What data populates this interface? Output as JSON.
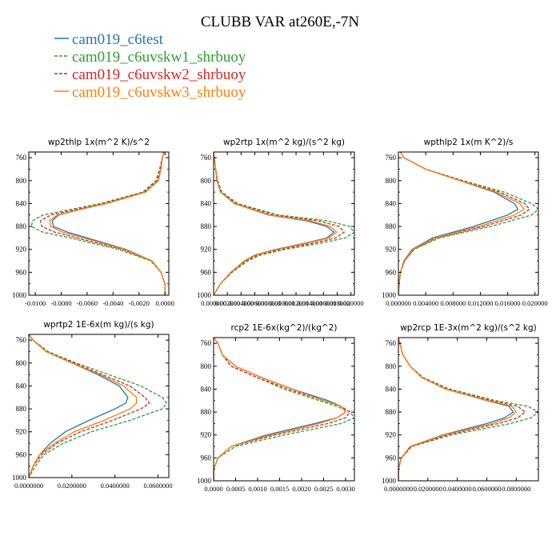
{
  "figure": {
    "title": "CLUBB VAR at260E,-7N"
  },
  "legend": [
    {
      "name": "cam019_c6test",
      "color": "#1f77b4",
      "dash": "solid"
    },
    {
      "name": "cam019_c6uvskw1_shrbuoy",
      "color": "#2ca02c",
      "dash": "dashed"
    },
    {
      "name": "cam019_c6uvskw2_shrbuoy",
      "color": "#d62728",
      "dash": "dashed"
    },
    {
      "name": "cam019_c6uvskw3_shrbuoy",
      "color": "#ff7f0e",
      "dash": "solid"
    }
  ],
  "chart_data": [
    {
      "type": "line",
      "title": "wp2thlp  1x(m^2 K)/s^2",
      "ylabel": "",
      "xlabel": "",
      "ylim": [
        1000,
        750
      ],
      "y_inverted": true,
      "xlim": [
        -0.0105,
        0.0003
      ],
      "yticks": [
        760,
        800,
        840,
        880,
        920,
        960,
        1000
      ],
      "xticks": [
        -0.01,
        -0.008,
        -0.006,
        -0.004,
        -0.002,
        0.0
      ],
      "xtick_labels": [
        "-0.0100",
        "-0.0080",
        "-0.0060",
        "-0.0040",
        "-0.0020",
        "0.0000"
      ],
      "levels": [
        750,
        760,
        780,
        800,
        820,
        840,
        850,
        860,
        870,
        880,
        890,
        900,
        920,
        940,
        960,
        980,
        1000
      ],
      "series": [
        {
          "name": "cam019_c6test",
          "values": [
            -0.0001,
            -0.0002,
            -0.0003,
            -0.0005,
            -0.0015,
            -0.0045,
            -0.0065,
            -0.0082,
            -0.0087,
            -0.0086,
            -0.0075,
            -0.006,
            -0.003,
            -0.001,
            -0.0003,
            0.0,
            0.0
          ]
        },
        {
          "name": "cam019_c6uvskw1_shrbuoy",
          "values": [
            -0.0001,
            -0.0002,
            -0.0004,
            -0.0007,
            -0.0017,
            -0.005,
            -0.0072,
            -0.0094,
            -0.0102,
            -0.0103,
            -0.0094,
            -0.0073,
            -0.0036,
            -0.0011,
            -0.0003,
            0.0,
            0.0
          ]
        },
        {
          "name": "cam019_c6uvskw2_shrbuoy",
          "values": [
            -0.0001,
            -0.0002,
            -0.0004,
            -0.0006,
            -0.0016,
            -0.0047,
            -0.0068,
            -0.0088,
            -0.0096,
            -0.0095,
            -0.0085,
            -0.0068,
            -0.0033,
            -0.001,
            -0.0003,
            0.0,
            0.0
          ]
        },
        {
          "name": "cam019_c6uvskw3_shrbuoy",
          "values": [
            -0.0001,
            -0.0002,
            -0.0003,
            -0.0005,
            -0.0015,
            -0.0045,
            -0.0065,
            -0.0083,
            -0.0089,
            -0.0088,
            -0.0079,
            -0.0063,
            -0.0031,
            -0.001,
            -0.0003,
            0.0,
            0.0
          ]
        }
      ]
    },
    {
      "type": "line",
      "title": "wp2rtp  1x(m^2 kg)/(s^2 kg)",
      "ylabel": "",
      "xlabel": "",
      "ylim": [
        1000,
        750
      ],
      "y_inverted": true,
      "xlim": [
        0,
        0.0205
      ],
      "yticks": [
        760,
        800,
        840,
        880,
        920,
        960,
        1000
      ],
      "xticks": [
        0,
        0.002,
        0.004,
        0.006,
        0.008,
        0.01,
        0.012,
        0.014,
        0.016,
        0.018,
        0.02
      ],
      "xtick_labels": [
        "0.000000",
        "0.002000",
        "0.004000",
        "0.006000",
        "0.008000",
        "0.010000",
        "0.012000",
        "0.014000",
        "0.016000",
        "0.018000",
        "0.020000"
      ],
      "levels": [
        750,
        760,
        780,
        800,
        820,
        840,
        860,
        870,
        880,
        890,
        900,
        910,
        920,
        930,
        940,
        960,
        980,
        1000
      ],
      "series": [
        {
          "name": "cam019_c6test",
          "values": [
            0.0,
            0.0001,
            0.0003,
            0.0005,
            0.001,
            0.003,
            0.008,
            0.0135,
            0.0165,
            0.0175,
            0.0165,
            0.013,
            0.009,
            0.006,
            0.0045,
            0.0025,
            0.001,
            0.0
          ]
        },
        {
          "name": "cam019_c6uvskw1_shrbuoy",
          "values": [
            0.0,
            0.0001,
            0.0003,
            0.0006,
            0.0012,
            0.0035,
            0.0095,
            0.0165,
            0.0198,
            0.0205,
            0.0192,
            0.0152,
            0.0104,
            0.0068,
            0.005,
            0.0027,
            0.001,
            0.0
          ]
        },
        {
          "name": "cam019_c6uvskw2_shrbuoy",
          "values": [
            0.0,
            0.0001,
            0.0003,
            0.0005,
            0.0011,
            0.0032,
            0.0088,
            0.0152,
            0.0183,
            0.019,
            0.0178,
            0.0142,
            0.0097,
            0.0064,
            0.0047,
            0.0026,
            0.001,
            0.0
          ]
        },
        {
          "name": "cam019_c6uvskw3_shrbuoy",
          "values": [
            0.0,
            0.0001,
            0.0003,
            0.0005,
            0.001,
            0.003,
            0.0082,
            0.014,
            0.017,
            0.0179,
            0.0168,
            0.0133,
            0.0092,
            0.0061,
            0.0046,
            0.0025,
            0.001,
            0.0
          ]
        }
      ]
    },
    {
      "type": "line",
      "title": "wpthlp2  1x(m K^2)/s",
      "ylabel": "",
      "xlabel": "",
      "ylim": [
        1000,
        750
      ],
      "y_inverted": true,
      "xlim": [
        0,
        0.0205
      ],
      "yticks": [
        760,
        800,
        840,
        880,
        920,
        960,
        1000
      ],
      "xticks": [
        0,
        0.004,
        0.008,
        0.012,
        0.016,
        0.02
      ],
      "xtick_labels": [
        "0.000000",
        "0.004000",
        "0.008000",
        "0.012000",
        "0.016000",
        "0.020000"
      ],
      "levels": [
        750,
        760,
        780,
        800,
        820,
        840,
        850,
        860,
        880,
        900,
        920,
        940,
        960,
        980,
        1000
      ],
      "series": [
        {
          "name": "cam019_c6test",
          "values": [
            0.0003,
            0.0008,
            0.004,
            0.009,
            0.014,
            0.017,
            0.0175,
            0.016,
            0.011,
            0.005,
            0.002,
            0.0008,
            0.0003,
            0.0001,
            0.0
          ]
        },
        {
          "name": "cam019_c6uvskw1_shrbuoy",
          "values": [
            0.0003,
            0.0008,
            0.004,
            0.0095,
            0.0155,
            0.0195,
            0.0205,
            0.0195,
            0.0135,
            0.006,
            0.0023,
            0.0009,
            0.0003,
            0.0001,
            0.0
          ]
        },
        {
          "name": "cam019_c6uvskw2_shrbuoy",
          "values": [
            0.0003,
            0.0008,
            0.004,
            0.0092,
            0.0148,
            0.0185,
            0.0192,
            0.018,
            0.0125,
            0.0056,
            0.0022,
            0.0009,
            0.0003,
            0.0001,
            0.0
          ]
        },
        {
          "name": "cam019_c6uvskw3_shrbuoy",
          "values": [
            0.0003,
            0.0008,
            0.004,
            0.009,
            0.0143,
            0.0178,
            0.0184,
            0.017,
            0.0118,
            0.0053,
            0.0021,
            0.0008,
            0.0003,
            0.0001,
            0.0
          ]
        }
      ]
    },
    {
      "type": "line",
      "title": "wprtp2  1E-6x(m kg)/(s kg)",
      "ylabel": "",
      "xlabel": "",
      "ylim": [
        1000,
        750
      ],
      "y_inverted": true,
      "xlim": [
        0,
        0.065
      ],
      "yticks": [
        760,
        800,
        840,
        880,
        920,
        960,
        1000
      ],
      "xticks": [
        0,
        0.02,
        0.04,
        0.06
      ],
      "xtick_labels": [
        "0.0000000",
        "0.0200000",
        "0.0400000",
        "0.0600000"
      ],
      "levels": [
        750,
        760,
        780,
        800,
        820,
        840,
        860,
        870,
        880,
        900,
        920,
        940,
        960,
        980,
        1000
      ],
      "series": [
        {
          "name": "cam019_c6test",
          "values": [
            0.0,
            0.002,
            0.008,
            0.02,
            0.032,
            0.042,
            0.046,
            0.045,
            0.04,
            0.028,
            0.017,
            0.01,
            0.005,
            0.002,
            0.0
          ]
        },
        {
          "name": "cam019_c6uvskw1_shrbuoy",
          "values": [
            0.0,
            0.002,
            0.009,
            0.022,
            0.037,
            0.052,
            0.062,
            0.064,
            0.062,
            0.047,
            0.029,
            0.016,
            0.007,
            0.003,
            0.0
          ]
        },
        {
          "name": "cam019_c6uvskw2_shrbuoy",
          "values": [
            0.0,
            0.002,
            0.008,
            0.021,
            0.034,
            0.047,
            0.054,
            0.056,
            0.052,
            0.039,
            0.024,
            0.013,
            0.006,
            0.002,
            0.0
          ]
        },
        {
          "name": "cam019_c6uvskw3_shrbuoy",
          "values": [
            0.0,
            0.002,
            0.008,
            0.02,
            0.033,
            0.044,
            0.05,
            0.05,
            0.047,
            0.035,
            0.021,
            0.012,
            0.005,
            0.002,
            0.0
          ]
        }
      ]
    },
    {
      "type": "line",
      "title": "rcp2  1E-6x(kg^2)/(kg^2)",
      "ylabel": "",
      "xlabel": "",
      "ylim": [
        1000,
        750
      ],
      "y_inverted": true,
      "xlim": [
        0,
        0.0032
      ],
      "yticks": [
        760,
        800,
        840,
        880,
        920,
        960,
        1000
      ],
      "xticks": [
        0,
        0.0005,
        0.001,
        0.0015,
        0.002,
        0.0025,
        0.003
      ],
      "xtick_labels": [
        "0.0000",
        "0.0005",
        "0.0010",
        "0.0015",
        "0.0020",
        "0.0025",
        "0.0030"
      ],
      "levels": [
        750,
        760,
        780,
        800,
        820,
        840,
        860,
        870,
        880,
        890,
        900,
        920,
        940,
        960,
        980,
        1000
      ],
      "series": [
        {
          "name": "cam019_c6test",
          "values": [
            0.0,
            0.0001,
            0.0002,
            0.0005,
            0.0011,
            0.0018,
            0.0026,
            0.0029,
            0.003,
            0.0028,
            0.0023,
            0.0012,
            0.0004,
            0.0001,
            0.0,
            0.0
          ]
        },
        {
          "name": "cam019_c6uvskw1_shrbuoy",
          "values": [
            0.0,
            0.0001,
            0.0002,
            0.0004,
            0.001,
            0.0016,
            0.0024,
            0.0028,
            0.0031,
            0.0032,
            0.0029,
            0.0016,
            0.0005,
            0.0001,
            0.0,
            0.0
          ]
        },
        {
          "name": "cam019_c6uvskw2_shrbuoy",
          "values": [
            0.0,
            0.0001,
            0.0002,
            0.0004,
            0.001,
            0.0017,
            0.0025,
            0.0029,
            0.0031,
            0.003,
            0.0026,
            0.0014,
            0.0004,
            0.0001,
            0.0,
            0.0
          ]
        },
        {
          "name": "cam019_c6uvskw3_shrbuoy",
          "values": [
            0.0,
            0.0001,
            0.0002,
            0.0005,
            0.0011,
            0.0018,
            0.0025,
            0.0029,
            0.003,
            0.0028,
            0.0024,
            0.0013,
            0.0004,
            0.0001,
            0.0,
            0.0
          ]
        }
      ]
    },
    {
      "type": "line",
      "title": "wp2rcp  1E-3x(m^2 kg)/(s^2 kg)",
      "ylabel": "",
      "xlabel": "",
      "ylim": [
        1000,
        750
      ],
      "y_inverted": true,
      "xlim": [
        0,
        0.095
      ],
      "yticks": [
        760,
        800,
        840,
        880,
        920,
        960,
        1000
      ],
      "xticks": [
        0,
        0.02,
        0.04,
        0.06,
        0.08
      ],
      "xtick_labels": [
        "0.0000000",
        "0.0200000",
        "0.0400000",
        "0.0600000",
        "0.0800000"
      ],
      "levels": [
        750,
        760,
        780,
        800,
        820,
        840,
        860,
        870,
        880,
        890,
        900,
        920,
        940,
        960,
        980,
        1000
      ],
      "series": [
        {
          "name": "cam019_c6test",
          "values": [
            0.0,
            0.001,
            0.003,
            0.008,
            0.016,
            0.032,
            0.06,
            0.075,
            0.078,
            0.072,
            0.06,
            0.03,
            0.008,
            0.002,
            0.0,
            0.0
          ]
        },
        {
          "name": "cam019_c6uvskw1_shrbuoy",
          "values": [
            0.0,
            0.001,
            0.003,
            0.008,
            0.017,
            0.035,
            0.066,
            0.088,
            0.095,
            0.09,
            0.076,
            0.036,
            0.009,
            0.002,
            0.0,
            0.0
          ]
        },
        {
          "name": "cam019_c6uvskw2_shrbuoy",
          "values": [
            0.0,
            0.001,
            0.003,
            0.008,
            0.016,
            0.033,
            0.063,
            0.081,
            0.086,
            0.081,
            0.068,
            0.033,
            0.009,
            0.002,
            0.0,
            0.0
          ]
        },
        {
          "name": "cam019_c6uvskw3_shrbuoy",
          "values": [
            0.0,
            0.001,
            0.003,
            0.008,
            0.016,
            0.032,
            0.061,
            0.077,
            0.08,
            0.075,
            0.064,
            0.031,
            0.008,
            0.002,
            0.0,
            0.0
          ]
        }
      ]
    }
  ]
}
